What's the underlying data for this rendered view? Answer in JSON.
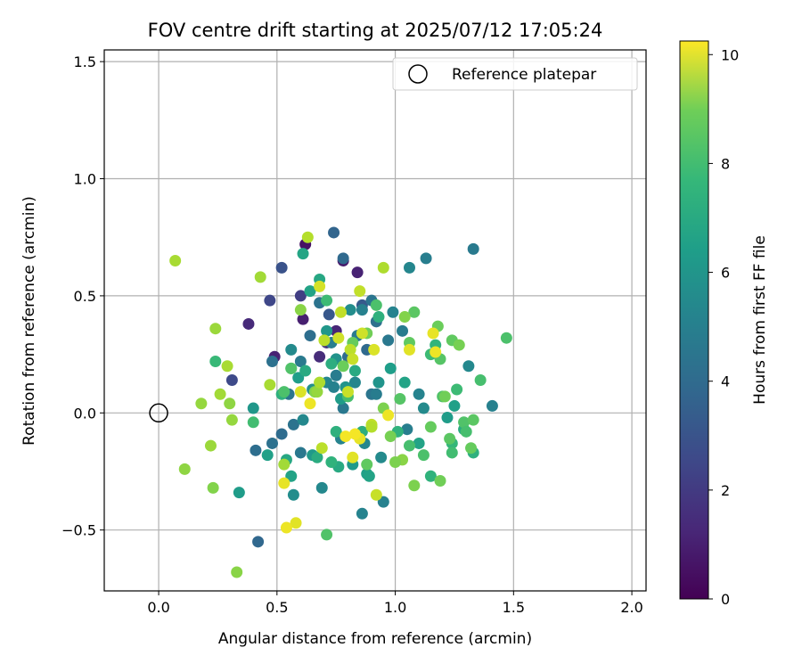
{
  "chart_data": {
    "type": "scatter",
    "title": "FOV centre drift starting at 2025/07/12 17:05:24",
    "xlabel": "Angular distance from reference (arcmin)",
    "ylabel": "Rotation from reference (arcmin)",
    "xlim": [
      -0.23,
      2.06
    ],
    "ylim": [
      -0.76,
      1.55
    ],
    "x_ticks": [
      0.0,
      0.5,
      1.0,
      1.5,
      2.0
    ],
    "x_tick_labels": [
      "0.0",
      "0.5",
      "1.0",
      "1.5",
      "2.0"
    ],
    "y_ticks": [
      -0.5,
      0.0,
      0.5,
      1.0,
      1.5
    ],
    "y_tick_labels": [
      "−0.5",
      "0.0",
      "0.5",
      "1.0",
      "1.5"
    ],
    "grid": true,
    "legend_position": "top-right",
    "reference": {
      "label": "Reference platepar",
      "x": 0.0,
      "y": 0.0
    },
    "colorbar": {
      "label": "Hours from first FF file",
      "range": [
        0,
        10.25
      ],
      "ticks": [
        0,
        2,
        4,
        6,
        8,
        10
      ],
      "tick_labels": [
        "0",
        "2",
        "4",
        "6",
        "8",
        "10"
      ],
      "colormap": "viridis"
    },
    "points": [
      {
        "x": 0.62,
        "y": 0.72,
        "t": 0.5
      },
      {
        "x": 0.78,
        "y": 0.65,
        "t": 0.8
      },
      {
        "x": 0.84,
        "y": 0.6,
        "t": 1.0
      },
      {
        "x": 0.38,
        "y": 0.38,
        "t": 1.2
      },
      {
        "x": 0.61,
        "y": 0.4,
        "t": 0.9
      },
      {
        "x": 0.49,
        "y": 0.24,
        "t": 1.0
      },
      {
        "x": 0.68,
        "y": 0.24,
        "t": 1.3
      },
      {
        "x": 0.75,
        "y": 0.35,
        "t": 1.1
      },
      {
        "x": 0.71,
        "y": 0.3,
        "t": 1.6
      },
      {
        "x": 0.6,
        "y": 0.5,
        "t": 1.9
      },
      {
        "x": 0.47,
        "y": 0.48,
        "t": 2.2
      },
      {
        "x": 0.31,
        "y": 0.14,
        "t": 2.3
      },
      {
        "x": 0.52,
        "y": 0.62,
        "t": 2.6
      },
      {
        "x": 0.72,
        "y": 0.42,
        "t": 2.8
      },
      {
        "x": 0.86,
        "y": 0.46,
        "t": 2.9
      },
      {
        "x": 0.74,
        "y": 0.77,
        "t": 3.3
      },
      {
        "x": 0.78,
        "y": 0.66,
        "t": 3.5
      },
      {
        "x": 0.42,
        "y": -0.55,
        "t": 3.4
      },
      {
        "x": 0.41,
        "y": -0.16,
        "t": 3.7
      },
      {
        "x": 0.48,
        "y": -0.13,
        "t": 3.8
      },
      {
        "x": 0.52,
        "y": -0.09,
        "t": 3.6
      },
      {
        "x": 0.57,
        "y": -0.05,
        "t": 3.9
      },
      {
        "x": 0.6,
        "y": -0.17,
        "t": 4.1
      },
      {
        "x": 0.48,
        "y": 0.22,
        "t": 3.8
      },
      {
        "x": 0.55,
        "y": 0.08,
        "t": 4.0
      },
      {
        "x": 0.6,
        "y": 0.22,
        "t": 4.2
      },
      {
        "x": 0.64,
        "y": 0.33,
        "t": 3.7
      },
      {
        "x": 0.68,
        "y": 0.47,
        "t": 3.9
      },
      {
        "x": 0.73,
        "y": 0.3,
        "t": 4.4
      },
      {
        "x": 0.75,
        "y": 0.16,
        "t": 4.3
      },
      {
        "x": 0.78,
        "y": 0.02,
        "t": 4.1
      },
      {
        "x": 0.8,
        "y": 0.24,
        "t": 3.6
      },
      {
        "x": 0.84,
        "y": 0.33,
        "t": 4.2
      },
      {
        "x": 0.88,
        "y": 0.27,
        "t": 3.5
      },
      {
        "x": 0.9,
        "y": 0.48,
        "t": 4.0
      },
      {
        "x": 0.86,
        "y": 0.44,
        "t": 4.5
      },
      {
        "x": 0.92,
        "y": 0.39,
        "t": 3.8
      },
      {
        "x": 0.97,
        "y": 0.31,
        "t": 4.1
      },
      {
        "x": 0.99,
        "y": 0.43,
        "t": 4.6
      },
      {
        "x": 1.03,
        "y": 0.35,
        "t": 4.3
      },
      {
        "x": 1.06,
        "y": 0.62,
        "t": 4.7
      },
      {
        "x": 1.13,
        "y": 0.66,
        "t": 4.4
      },
      {
        "x": 1.33,
        "y": 0.7,
        "t": 4.2
      },
      {
        "x": 1.41,
        "y": 0.03,
        "t": 4.5
      },
      {
        "x": 1.31,
        "y": 0.2,
        "t": 4.8
      },
      {
        "x": 1.1,
        "y": 0.08,
        "t": 4.6
      },
      {
        "x": 1.12,
        "y": 0.02,
        "t": 4.9
      },
      {
        "x": 1.05,
        "y": -0.07,
        "t": 4.4
      },
      {
        "x": 0.95,
        "y": -0.38,
        "t": 4.5
      },
      {
        "x": 0.86,
        "y": -0.43,
        "t": 4.6
      },
      {
        "x": 0.9,
        "y": 0.08,
        "t": 4.0
      },
      {
        "x": 0.92,
        "y": 0.08,
        "t": 4.3
      },
      {
        "x": 0.83,
        "y": 0.13,
        "t": 4.7
      },
      {
        "x": 0.69,
        "y": -0.32,
        "t": 4.8
      },
      {
        "x": 0.57,
        "y": -0.35,
        "t": 5.0
      },
      {
        "x": 0.61,
        "y": -0.03,
        "t": 4.8
      },
      {
        "x": 0.65,
        "y": 0.1,
        "t": 5.1
      },
      {
        "x": 0.56,
        "y": 0.27,
        "t": 4.9
      },
      {
        "x": 0.71,
        "y": 0.13,
        "t": 4.7
      },
      {
        "x": 0.77,
        "y": -0.11,
        "t": 4.6
      },
      {
        "x": 0.87,
        "y": -0.13,
        "t": 4.7
      },
      {
        "x": 0.94,
        "y": -0.19,
        "t": 4.9
      },
      {
        "x": 0.74,
        "y": 0.11,
        "t": 4.5
      },
      {
        "x": 0.81,
        "y": 0.44,
        "t": 5.0
      },
      {
        "x": 0.75,
        "y": 0.23,
        "t": 5.2
      },
      {
        "x": 0.79,
        "y": 0.11,
        "t": 5.3
      },
      {
        "x": 0.34,
        "y": -0.34,
        "t": 5.6
      },
      {
        "x": 0.4,
        "y": 0.02,
        "t": 5.4
      },
      {
        "x": 0.46,
        "y": -0.18,
        "t": 5.8
      },
      {
        "x": 0.56,
        "y": -0.27,
        "t": 5.9
      },
      {
        "x": 0.65,
        "y": -0.18,
        "t": 5.5
      },
      {
        "x": 0.59,
        "y": 0.15,
        "t": 5.7
      },
      {
        "x": 0.64,
        "y": 0.52,
        "t": 5.9
      },
      {
        "x": 0.71,
        "y": 0.35,
        "t": 5.4
      },
      {
        "x": 0.77,
        "y": 0.06,
        "t": 5.6
      },
      {
        "x": 0.82,
        "y": -0.22,
        "t": 5.5
      },
      {
        "x": 0.88,
        "y": -0.26,
        "t": 5.8
      },
      {
        "x": 0.89,
        "y": -0.27,
        "t": 5.9
      },
      {
        "x": 0.93,
        "y": 0.13,
        "t": 5.3
      },
      {
        "x": 0.98,
        "y": 0.19,
        "t": 5.7
      },
      {
        "x": 1.04,
        "y": 0.13,
        "t": 5.9
      },
      {
        "x": 1.1,
        "y": -0.13,
        "t": 5.9
      },
      {
        "x": 1.22,
        "y": -0.02,
        "t": 5.6
      },
      {
        "x": 1.25,
        "y": 0.03,
        "t": 5.8
      },
      {
        "x": 0.61,
        "y": 0.68,
        "t": 6.0
      },
      {
        "x": 0.68,
        "y": 0.57,
        "t": 6.1
      },
      {
        "x": 0.73,
        "y": 0.21,
        "t": 6.4
      },
      {
        "x": 0.75,
        "y": -0.08,
        "t": 6.5
      },
      {
        "x": 0.76,
        "y": -0.23,
        "t": 6.2
      },
      {
        "x": 0.73,
        "y": -0.21,
        "t": 6.6
      },
      {
        "x": 0.67,
        "y": -0.19,
        "t": 6.3
      },
      {
        "x": 0.54,
        "y": -0.2,
        "t": 6.1
      },
      {
        "x": 0.52,
        "y": 0.08,
        "t": 6.5
      },
      {
        "x": 0.62,
        "y": 0.18,
        "t": 6.2
      },
      {
        "x": 0.86,
        "y": -0.08,
        "t": 6.4
      },
      {
        "x": 0.93,
        "y": 0.41,
        "t": 6.5
      },
      {
        "x": 1.01,
        "y": -0.08,
        "t": 6.6
      },
      {
        "x": 1.15,
        "y": -0.27,
        "t": 6.6
      },
      {
        "x": 1.29,
        "y": -0.07,
        "t": 6.3
      },
      {
        "x": 1.33,
        "y": -0.17,
        "t": 6.5
      },
      {
        "x": 1.24,
        "y": -0.13,
        "t": 6.8
      },
      {
        "x": 1.17,
        "y": 0.29,
        "t": 6.7
      },
      {
        "x": 0.83,
        "y": 0.18,
        "t": 6.2
      },
      {
        "x": 0.24,
        "y": 0.22,
        "t": 6.9
      },
      {
        "x": 0.71,
        "y": 0.48,
        "t": 7.0
      },
      {
        "x": 0.8,
        "y": 0.07,
        "t": 7.2
      },
      {
        "x": 0.56,
        "y": 0.19,
        "t": 7.3
      },
      {
        "x": 0.4,
        "y": -0.04,
        "t": 7.1
      },
      {
        "x": 0.71,
        "y": -0.52,
        "t": 7.4
      },
      {
        "x": 1.06,
        "y": -0.14,
        "t": 7.2
      },
      {
        "x": 1.15,
        "y": 0.25,
        "t": 7.0
      },
      {
        "x": 1.12,
        "y": -0.18,
        "t": 7.3
      },
      {
        "x": 1.24,
        "y": -0.17,
        "t": 7.1
      },
      {
        "x": 1.29,
        "y": -0.04,
        "t": 7.4
      },
      {
        "x": 1.36,
        "y": 0.14,
        "t": 7.2
      },
      {
        "x": 1.47,
        "y": 0.32,
        "t": 7.3
      },
      {
        "x": 1.26,
        "y": 0.1,
        "t": 7.0
      },
      {
        "x": 1.3,
        "y": -0.08,
        "t": 7.2
      },
      {
        "x": 1.33,
        "y": -0.03,
        "t": 7.6
      },
      {
        "x": 1.2,
        "y": 0.07,
        "t": 7.4
      },
      {
        "x": 1.19,
        "y": 0.23,
        "t": 7.5
      },
      {
        "x": 1.24,
        "y": 0.31,
        "t": 7.7
      },
      {
        "x": 0.92,
        "y": 0.46,
        "t": 7.3
      },
      {
        "x": 1.02,
        "y": 0.06,
        "t": 7.5
      },
      {
        "x": 1.08,
        "y": 0.43,
        "t": 7.6
      },
      {
        "x": 1.06,
        "y": 0.3,
        "t": 7.7
      },
      {
        "x": 1.15,
        "y": -0.06,
        "t": 7.8
      },
      {
        "x": 1.18,
        "y": 0.37,
        "t": 7.9
      },
      {
        "x": 1.23,
        "y": -0.11,
        "t": 7.6
      },
      {
        "x": 0.88,
        "y": -0.22,
        "t": 7.7
      },
      {
        "x": 0.56,
        "y": 0.19,
        "t": 7.4
      },
      {
        "x": 0.82,
        "y": 0.3,
        "t": 7.8
      },
      {
        "x": 0.78,
        "y": 0.2,
        "t": 7.9
      },
      {
        "x": 0.53,
        "y": 0.09,
        "t": 7.3
      },
      {
        "x": 1.32,
        "y": -0.15,
        "t": 7.8
      },
      {
        "x": 1.21,
        "y": 0.07,
        "t": 8.0
      },
      {
        "x": 1.27,
        "y": 0.29,
        "t": 8.1
      },
      {
        "x": 1.19,
        "y": -0.29,
        "t": 8.0
      },
      {
        "x": 1.08,
        "y": -0.31,
        "t": 8.2
      },
      {
        "x": 1.03,
        "y": -0.2,
        "t": 8.4
      },
      {
        "x": 1.0,
        "y": -0.21,
        "t": 8.2
      },
      {
        "x": 0.98,
        "y": -0.1,
        "t": 8.1
      },
      {
        "x": 1.04,
        "y": 0.41,
        "t": 8.3
      },
      {
        "x": 0.88,
        "y": 0.34,
        "t": 8.0
      },
      {
        "x": 0.95,
        "y": 0.02,
        "t": 8.2
      },
      {
        "x": 0.6,
        "y": 0.44,
        "t": 8.4
      },
      {
        "x": 0.66,
        "y": 0.09,
        "t": 8.3
      },
      {
        "x": 0.3,
        "y": 0.04,
        "t": 8.5
      },
      {
        "x": 0.18,
        "y": 0.04,
        "t": 8.6
      },
      {
        "x": 0.33,
        "y": -0.68,
        "t": 8.4
      },
      {
        "x": 0.23,
        "y": -0.32,
        "t": 8.3
      },
      {
        "x": 0.11,
        "y": -0.24,
        "t": 8.5
      },
      {
        "x": 0.22,
        "y": -0.14,
        "t": 8.7
      },
      {
        "x": 0.31,
        "y": -0.03,
        "t": 8.6
      },
      {
        "x": 0.26,
        "y": 0.08,
        "t": 8.8
      },
      {
        "x": 0.29,
        "y": 0.2,
        "t": 8.9
      },
      {
        "x": 0.24,
        "y": 0.36,
        "t": 8.7
      },
      {
        "x": 0.43,
        "y": 0.58,
        "t": 8.8
      },
      {
        "x": 0.07,
        "y": 0.65,
        "t": 8.9
      },
      {
        "x": 0.47,
        "y": 0.12,
        "t": 8.9
      },
      {
        "x": 0.53,
        "y": -0.22,
        "t": 8.8
      },
      {
        "x": 0.67,
        "y": 0.09,
        "t": 8.6
      },
      {
        "x": 0.68,
        "y": 0.13,
        "t": 9.0
      },
      {
        "x": 0.63,
        "y": 0.75,
        "t": 9.1
      },
      {
        "x": 0.7,
        "y": 0.31,
        "t": 9.2
      },
      {
        "x": 0.77,
        "y": 0.43,
        "t": 9.3
      },
      {
        "x": 0.8,
        "y": 0.09,
        "t": 9.4
      },
      {
        "x": 0.85,
        "y": 0.52,
        "t": 9.3
      },
      {
        "x": 0.86,
        "y": 0.34,
        "t": 9.5
      },
      {
        "x": 0.95,
        "y": 0.62,
        "t": 9.0
      },
      {
        "x": 0.81,
        "y": 0.27,
        "t": 9.2
      },
      {
        "x": 0.82,
        "y": 0.23,
        "t": 9.4
      },
      {
        "x": 0.9,
        "y": -0.05,
        "t": 9.3
      },
      {
        "x": 0.9,
        "y": -0.06,
        "t": 9.1
      },
      {
        "x": 0.76,
        "y": 0.32,
        "t": 9.5
      },
      {
        "x": 0.92,
        "y": -0.35,
        "t": 9.4
      },
      {
        "x": 0.68,
        "y": 0.54,
        "t": 9.6
      },
      {
        "x": 0.69,
        "y": -0.15,
        "t": 9.2
      },
      {
        "x": 0.6,
        "y": 0.09,
        "t": 9.7
      },
      {
        "x": 0.53,
        "y": -0.3,
        "t": 9.9
      },
      {
        "x": 0.58,
        "y": -0.47,
        "t": 9.8
      },
      {
        "x": 0.54,
        "y": -0.49,
        "t": 10.0
      },
      {
        "x": 0.64,
        "y": 0.04,
        "t": 10.0
      },
      {
        "x": 0.79,
        "y": -0.1,
        "t": 10.1
      },
      {
        "x": 0.85,
        "y": -0.11,
        "t": 9.9
      },
      {
        "x": 0.82,
        "y": -0.19,
        "t": 9.8
      },
      {
        "x": 0.83,
        "y": -0.09,
        "t": 10.1
      },
      {
        "x": 0.97,
        "y": -0.01,
        "t": 10.0
      },
      {
        "x": 0.91,
        "y": 0.27,
        "t": 9.7
      },
      {
        "x": 1.06,
        "y": 0.27,
        "t": 9.8
      },
      {
        "x": 1.16,
        "y": 0.34,
        "t": 9.9
      },
      {
        "x": 1.17,
        "y": 0.26,
        "t": 10.0
      }
    ]
  }
}
